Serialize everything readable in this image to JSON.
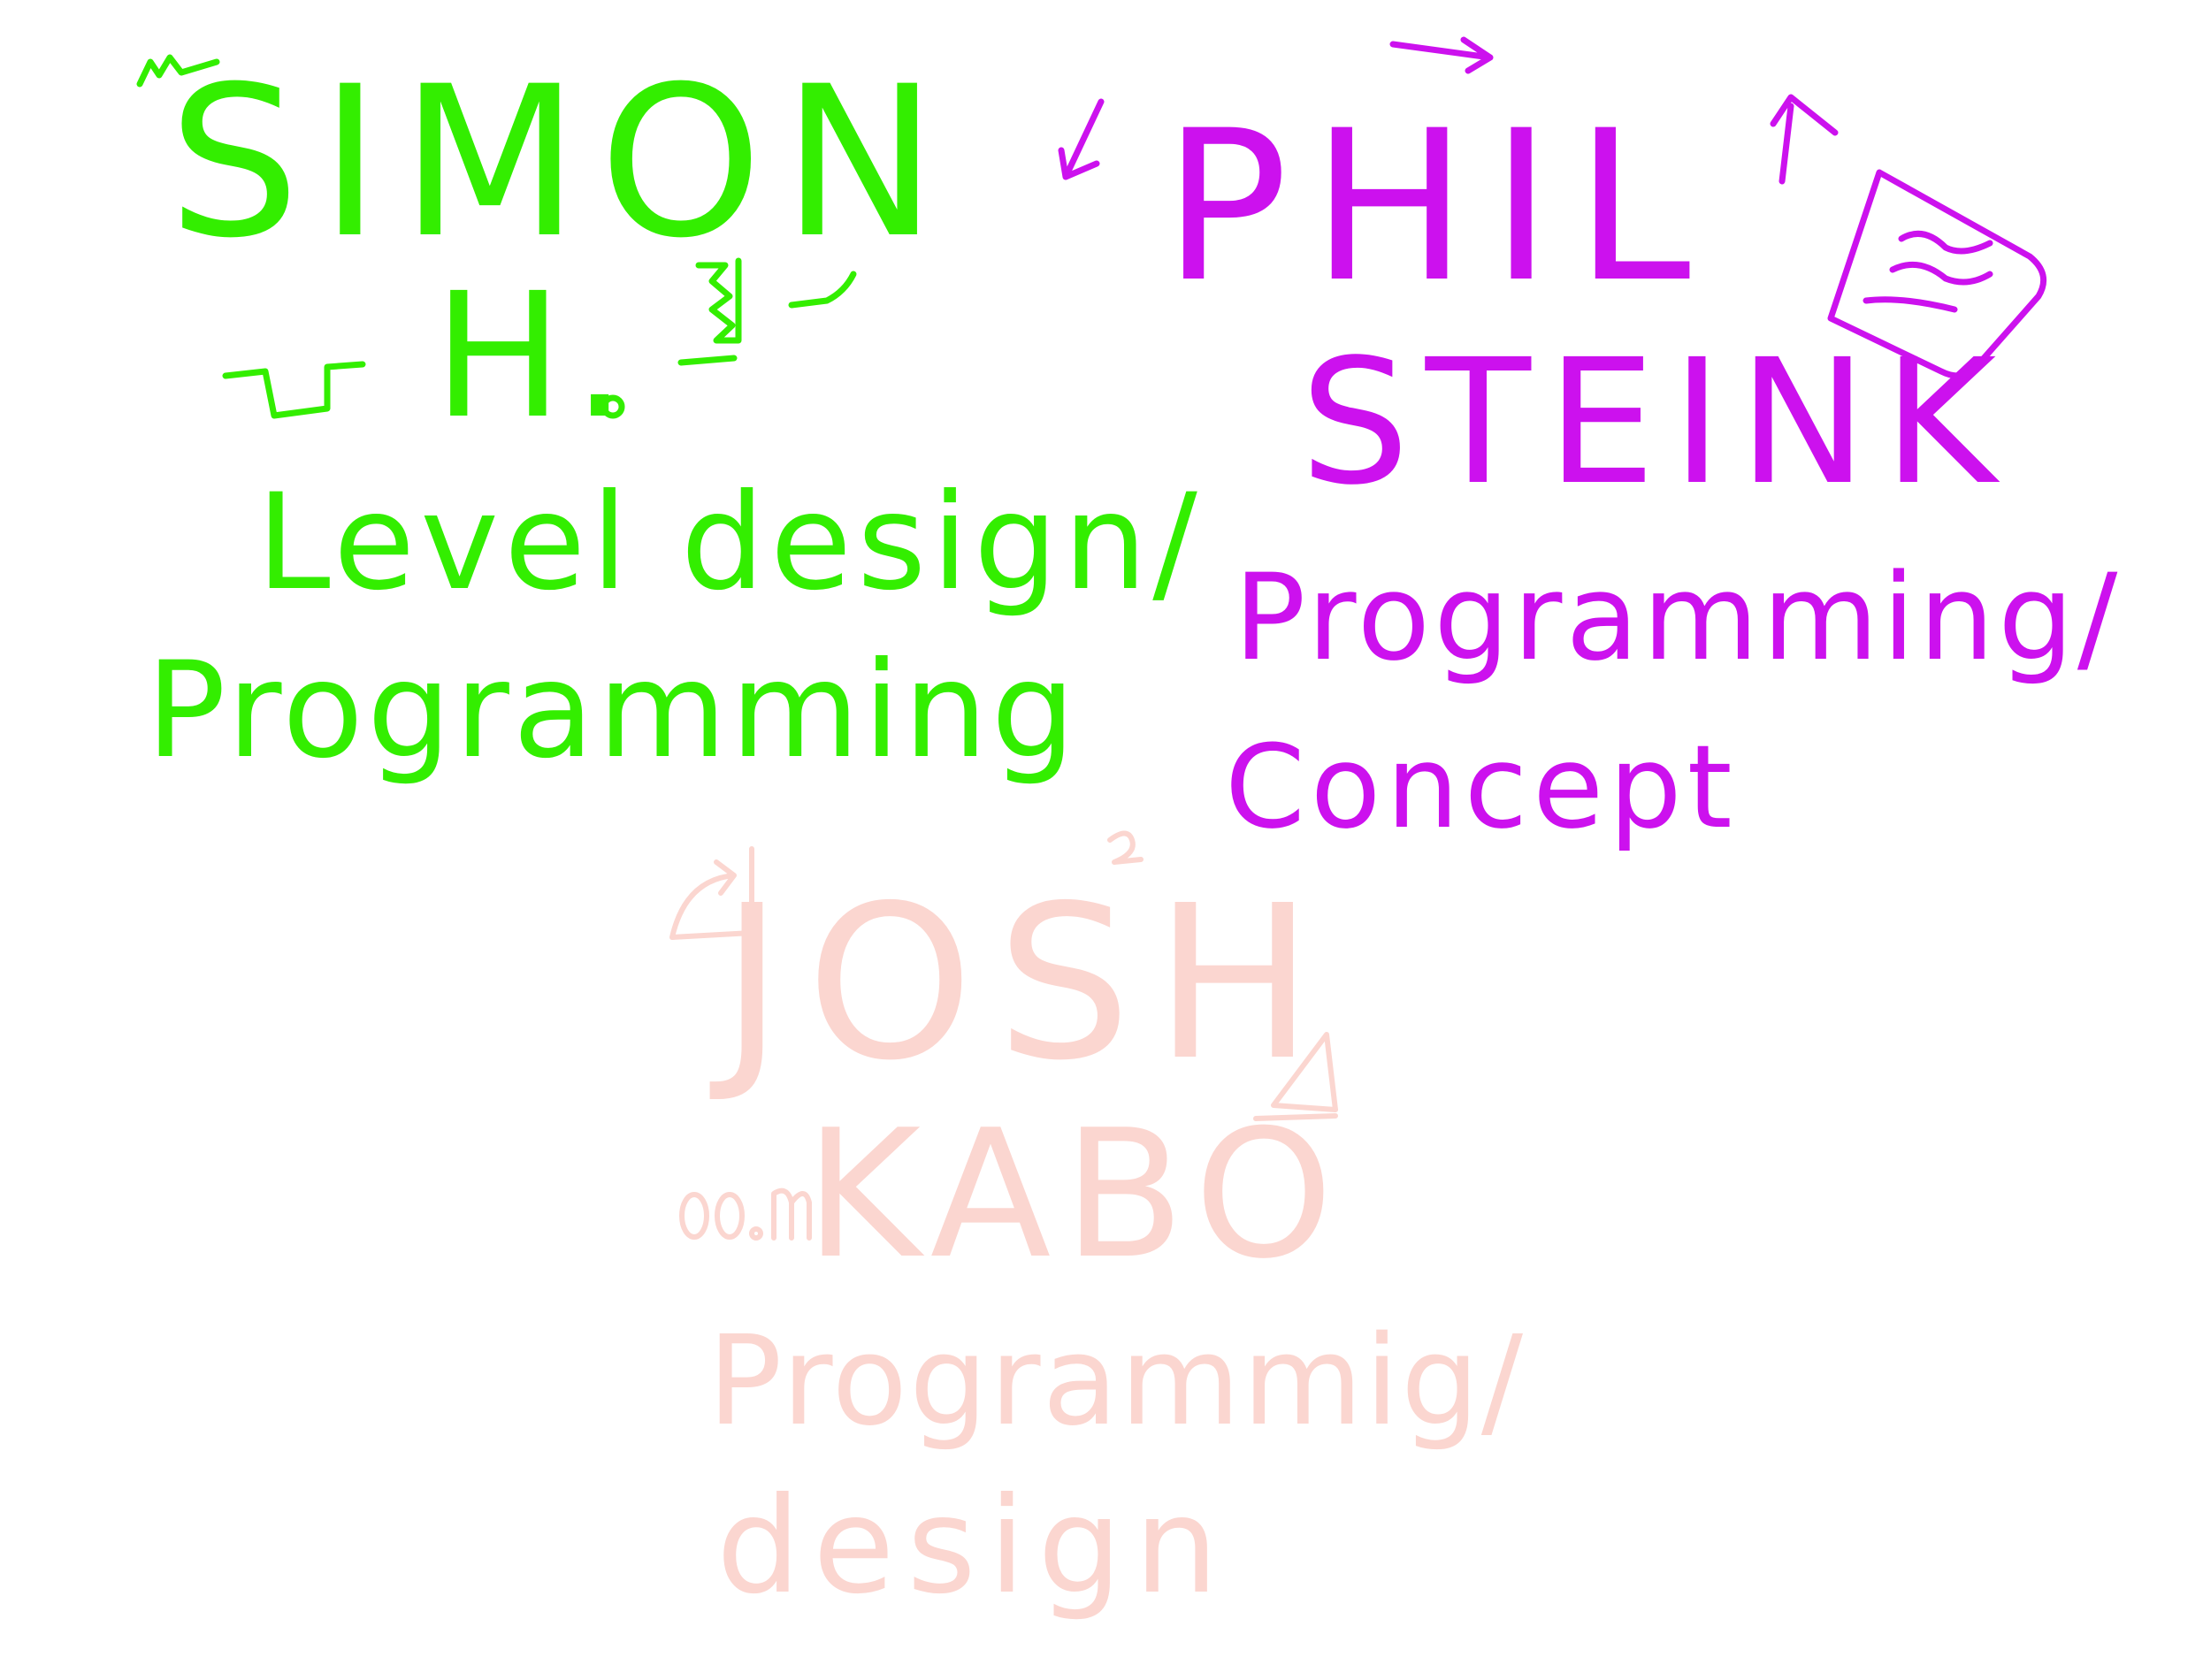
{
  "colors": {
    "simon": "#33ee00",
    "phil": "#cc11ee",
    "josh": "#fbd6d0",
    "background": "#ffffff"
  },
  "credits": [
    {
      "id": "simon",
      "name_first": "SIMON",
      "name_second": "H.",
      "role_line1": "Level design/",
      "role_line2": "Programming"
    },
    {
      "id": "phil",
      "name_first": "PHIL",
      "name_second": "STEINK",
      "role_line1": "Programming/",
      "role_line2": "Concept"
    },
    {
      "id": "josh",
      "name_first": "JOSH",
      "name_second": "KABO",
      "role_line1": "Programmig/",
      "role_line2": "design"
    }
  ],
  "icons": {
    "simon_doodles": [
      "squiggle-icon",
      "step-line-icon",
      "zigzag-icon",
      "circle-icon"
    ],
    "phil_doodles": [
      "arrow-right-icon",
      "arrow-down-icon",
      "arrow-up-icon",
      "note-card-icon"
    ],
    "josh_doodles": [
      "curved-arrow-icon",
      "triangle-icon",
      "circles-icon"
    ]
  }
}
